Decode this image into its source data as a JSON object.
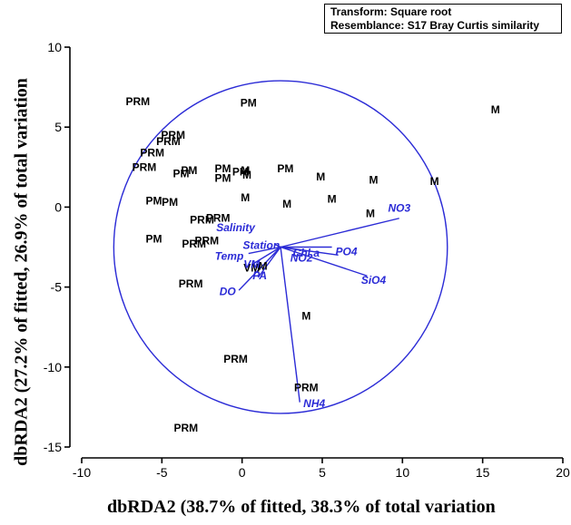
{
  "transform_label": "Transform: Square root",
  "resemblance_label": "Resemblance: S17 Bray Curtis similarity",
  "chart_data": {
    "type": "scatter",
    "xlabel": "dbRDA2 (38.7% of fitted, 38.3% of total variation",
    "ylabel": "dbRDA2 (27.2% of fitted, 26.9% of total variation",
    "xlim": [
      -10,
      20
    ],
    "ylim": [
      -15,
      10
    ],
    "xticks": [
      -10,
      -5,
      0,
      5,
      10,
      15,
      20
    ],
    "yticks": [
      -15,
      -10,
      -5,
      0,
      5,
      10
    ],
    "grid": false,
    "circle": {
      "cx": 2.4,
      "cy": -2.5,
      "r": 10.4
    },
    "points": [
      {
        "label": "PRM",
        "x": -6.5,
        "y": 6.6
      },
      {
        "label": "PM",
        "x": 0.4,
        "y": 6.5
      },
      {
        "label": "M",
        "x": 15.8,
        "y": 6.1
      },
      {
        "label": "PRM",
        "x": -4.3,
        "y": 4.5
      },
      {
        "label": "PRM",
        "x": -4.6,
        "y": 4.1
      },
      {
        "label": "PRM",
        "x": -5.6,
        "y": 3.4
      },
      {
        "label": "PRM",
        "x": -6.1,
        "y": 2.5
      },
      {
        "label": "PM",
        "x": -3.8,
        "y": 2.1
      },
      {
        "label": "PM",
        "x": -3.3,
        "y": 2.3
      },
      {
        "label": "PM",
        "x": -1.2,
        "y": 2.4
      },
      {
        "label": "PM",
        "x": -1.2,
        "y": 1.8
      },
      {
        "label": "PM",
        "x": -0.1,
        "y": 2.2
      },
      {
        "label": "M",
        "x": 0.2,
        "y": 2.3
      },
      {
        "label": "M",
        "x": 0.3,
        "y": 2.0
      },
      {
        "label": "PM",
        "x": 2.7,
        "y": 2.4
      },
      {
        "label": "M",
        "x": 4.9,
        "y": 1.9
      },
      {
        "label": "M",
        "x": 8.2,
        "y": 1.7
      },
      {
        "label": "M",
        "x": 12.0,
        "y": 1.6
      },
      {
        "label": "PM",
        "x": -5.5,
        "y": 0.4
      },
      {
        "label": "PM",
        "x": -4.5,
        "y": 0.3
      },
      {
        "label": "M",
        "x": 0.2,
        "y": 0.6
      },
      {
        "label": "M",
        "x": 2.8,
        "y": 0.2
      },
      {
        "label": "M",
        "x": 5.6,
        "y": 0.5
      },
      {
        "label": "M",
        "x": 8.0,
        "y": -0.4
      },
      {
        "label": "PRM",
        "x": -2.5,
        "y": -0.8
      },
      {
        "label": "PRM",
        "x": -1.5,
        "y": -0.7
      },
      {
        "label": "PM",
        "x": -5.5,
        "y": -2.0
      },
      {
        "label": "PRM",
        "x": -3.0,
        "y": -2.3
      },
      {
        "label": "PRM",
        "x": -2.2,
        "y": -2.1
      },
      {
        "label": "VM",
        "x": 0.6,
        "y": -3.8
      },
      {
        "label": "M",
        "x": 1.3,
        "y": -3.7
      },
      {
        "label": "PRM",
        "x": -3.2,
        "y": -4.8
      },
      {
        "label": "M",
        "x": 4.0,
        "y": -6.8
      },
      {
        "label": "PRM",
        "x": -0.4,
        "y": -9.5
      },
      {
        "label": "PRM",
        "x": 4.0,
        "y": -11.3
      },
      {
        "label": "PRM",
        "x": -3.5,
        "y": -13.8
      }
    ],
    "vectors": [
      {
        "name": "NO3",
        "x": 9.8,
        "y": -0.7,
        "lx": 9.8,
        "ly": -0.3
      },
      {
        "name": "Salinity",
        "x": 2.0,
        "y": -2.3,
        "lx": -0.4,
        "ly": -1.5
      },
      {
        "name": "Station",
        "x": 2.3,
        "y": -2.6,
        "lx": 1.2,
        "ly": -2.6
      },
      {
        "name": "NO2",
        "x": 5.6,
        "y": -2.5,
        "lx": 3.7,
        "ly": -3.4
      },
      {
        "name": "Chl a",
        "x": 3.7,
        "y": -2.7,
        "lx": 4.0,
        "ly": -3.1
      },
      {
        "name": "PO4",
        "x": 6.0,
        "y": -3.0,
        "lx": 6.5,
        "ly": -3.0
      },
      {
        "name": "SiO4",
        "x": 7.8,
        "y": -4.3,
        "lx": 8.2,
        "ly": -4.8
      },
      {
        "name": "Temp",
        "x": 0.4,
        "y": -2.9,
        "lx": -0.8,
        "ly": -3.3
      },
      {
        "name": "VM",
        "x": 0.6,
        "y": -3.6,
        "lx": 0.6,
        "ly": -3.8
      },
      {
        "name": "PA",
        "x": 1.0,
        "y": -4.4,
        "lx": 1.1,
        "ly": -4.5
      },
      {
        "name": "DO",
        "x": -0.2,
        "y": -5.2,
        "lx": -0.9,
        "ly": -5.5
      },
      {
        "name": "NH4",
        "x": 3.6,
        "y": -12.2,
        "lx": 4.5,
        "ly": -12.5
      }
    ],
    "colors": {
      "axis": "#000000",
      "points": "#000000",
      "vectors": "#2b2bd6"
    }
  }
}
